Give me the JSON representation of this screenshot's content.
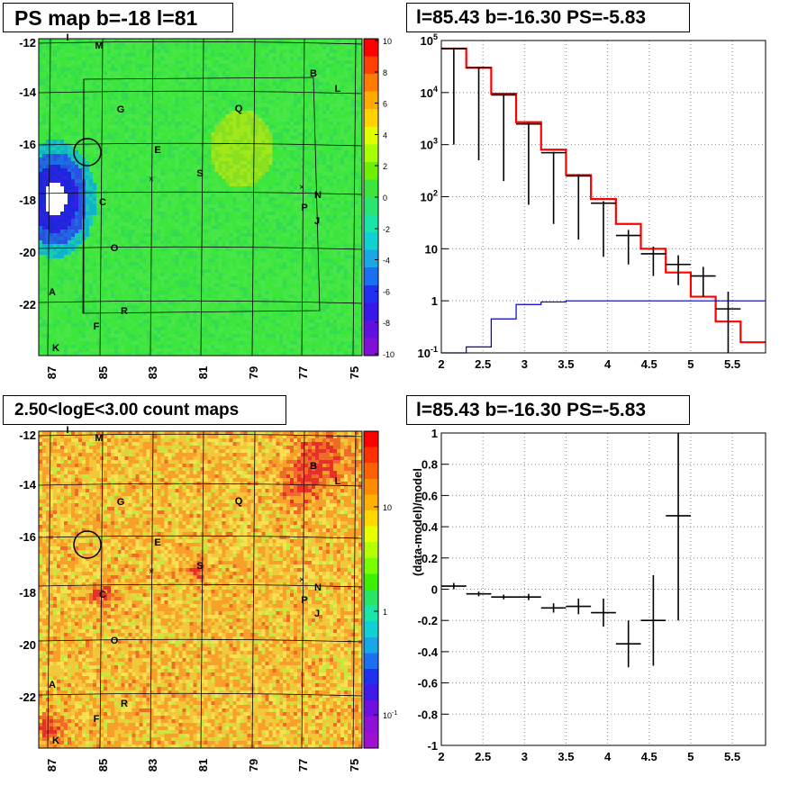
{
  "titles": {
    "ps_map": "PS map b=-18 l=81",
    "spectrum": "l=85.43 b=-16.30 PS=-5.83",
    "count_map": "2.50<logE<3.00 count maps",
    "residual": "l=85.43 b=-16.30 PS=-5.83"
  },
  "chart_data": [
    {
      "id": "ps_map",
      "type": "heatmap",
      "title": "PS map b=-18 l=81",
      "x_ticks": [
        "87",
        "85",
        "83",
        "81",
        "79",
        "77",
        "75"
      ],
      "y_ticks": [
        "-12",
        "-14",
        "-16",
        "-18",
        "-20",
        "-22"
      ],
      "colorbar_ticks": [
        "10",
        "8",
        "6",
        "4",
        "2",
        "0",
        "-2",
        "-4",
        "-6",
        "-8",
        "-10"
      ],
      "zlim": [
        -10,
        10
      ],
      "source_labels": [
        "I",
        "M",
        "B",
        "L",
        "G",
        "Q",
        "E",
        "S",
        "N",
        "P",
        "J",
        "C",
        "O",
        "A",
        "R",
        "F",
        "K"
      ],
      "marker_circle": {
        "l": 85.43,
        "b": -16.3
      }
    },
    {
      "id": "spectrum",
      "type": "line",
      "title": "l=85.43 b=-16.30 PS=-5.83",
      "log_y": true,
      "xlim": [
        2.0,
        5.9
      ],
      "ylim": [
        0.1,
        100000
      ],
      "x_ticks": [
        "2",
        "2.5",
        "3",
        "3.5",
        "4",
        "4.5",
        "5",
        "5.5"
      ],
      "y_ticks": [
        "10^-1",
        "1",
        "10",
        "10^2",
        "10^3",
        "10^4",
        "10^5"
      ],
      "bin_edges": [
        2.0,
        2.3,
        2.6,
        2.9,
        3.2,
        3.5,
        3.8,
        4.1,
        4.4,
        4.7,
        5.0,
        5.3,
        5.6,
        5.9
      ],
      "series": [
        {
          "color": "#ff0000",
          "kind": "step",
          "values": [
            70000,
            30000,
            9500,
            2700,
            800,
            260,
            90,
            30,
            10,
            3.5,
            1.2,
            0.4,
            0.16
          ]
        },
        {
          "color": "#0000cc",
          "kind": "step",
          "values": [
            0.08,
            0.13,
            0.45,
            0.85,
            0.95,
            1.0,
            1.0,
            1.0,
            1.0,
            1.0,
            1.0,
            1.0,
            1.0
          ]
        },
        {
          "color": "#000000",
          "kind": "errorbar",
          "x": [
            2.15,
            2.45,
            2.75,
            3.05,
            3.35,
            3.65,
            3.95,
            4.25,
            4.55,
            4.85,
            5.15,
            5.45
          ],
          "values": [
            70000,
            30000,
            9000,
            2500,
            700,
            250,
            75,
            18,
            8,
            5,
            3,
            0.7
          ],
          "err_low": [
            69000,
            29500,
            8800,
            2430,
            670,
            235,
            68,
            13,
            5,
            3,
            1.8,
            0.69
          ],
          "err_high": [
            72000,
            31000,
            9300,
            2600,
            730,
            265,
            82,
            23,
            11,
            7.5,
            4.5,
            1.5
          ]
        }
      ]
    },
    {
      "id": "count_map",
      "type": "heatmap",
      "title": "2.50<logE<3.00 count maps",
      "log_z": true,
      "x_ticks": [
        "87",
        "85",
        "83",
        "81",
        "79",
        "77",
        "75"
      ],
      "y_ticks": [
        "-12",
        "-14",
        "-16",
        "-18",
        "-20",
        "-22"
      ],
      "colorbar_ticks": [
        "10",
        "1",
        "10^-1"
      ],
      "source_labels": [
        "I",
        "M",
        "B",
        "L",
        "G",
        "Q",
        "E",
        "S",
        "N",
        "P",
        "J",
        "C",
        "O",
        "A",
        "R",
        "F",
        "K"
      ],
      "marker_circle": {
        "l": 85.43,
        "b": -16.3
      }
    },
    {
      "id": "residual",
      "type": "scatter",
      "title": "l=85.43 b=-16.30 PS=-5.83",
      "ylabel": "(data-model)/model",
      "xlim": [
        2.0,
        5.9
      ],
      "ylim": [
        -1,
        1
      ],
      "x_ticks": [
        "2",
        "2.5",
        "3",
        "3.5",
        "4",
        "4.5",
        "5",
        "5.5"
      ],
      "y_ticks": [
        "1",
        "0.8",
        "0.6",
        "0.4",
        "0.2",
        "0",
        "-0.2",
        "-0.4",
        "-0.6",
        "-0.8",
        "-1"
      ],
      "x": [
        2.15,
        2.45,
        2.75,
        3.05,
        3.35,
        3.65,
        3.95,
        4.25,
        4.55,
        4.85
      ],
      "values": [
        0.02,
        -0.03,
        -0.05,
        -0.05,
        -0.12,
        -0.11,
        -0.15,
        -0.35,
        -0.2,
        0.47
      ],
      "errors": [
        0.02,
        0.015,
        0.015,
        0.02,
        0.03,
        0.05,
        0.09,
        0.15,
        0.29,
        0.67
      ]
    }
  ]
}
